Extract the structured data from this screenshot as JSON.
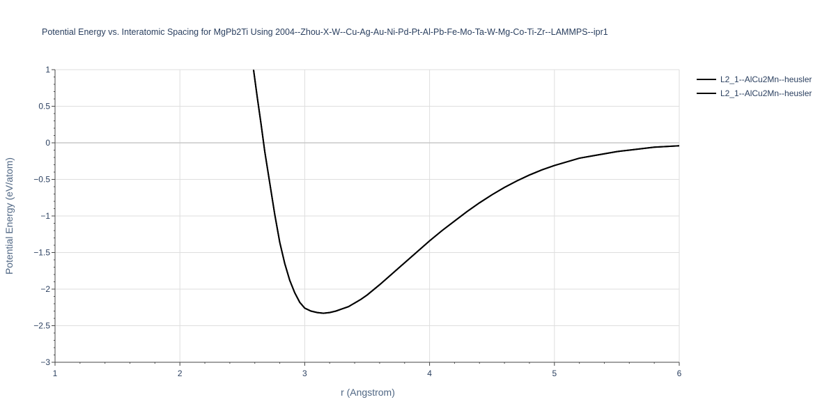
{
  "chart_data": {
    "type": "line",
    "title": "Potential Energy vs. Interatomic Spacing for MgPb2Ti Using 2004--Zhou-X-W--Cu-Ag-Au-Ni-Pd-Pt-Al-Pb-Fe-Mo-Ta-W-Mg-Co-Ti-Zr--LAMMPS--ipr1",
    "xlabel": "r (Angstrom)",
    "ylabel": "Potential Energy (eV/atom)",
    "xlim": [
      1,
      6
    ],
    "ylim": [
      -3,
      1
    ],
    "x_ticks": [
      1,
      2,
      3,
      4,
      5,
      6
    ],
    "x_tick_labels": [
      "1",
      "2",
      "3",
      "4",
      "5",
      "6"
    ],
    "y_ticks": [
      1,
      0.5,
      0,
      -0.5,
      -1,
      -1.5,
      -2,
      -2.5,
      -3
    ],
    "y_tick_labels": [
      "1",
      "0.5",
      "0",
      "−0.5",
      "−1",
      "−1.5",
      "−2",
      "−2.5",
      "−3"
    ],
    "grid": true,
    "legend_position": "top-right",
    "series": [
      {
        "name": "L2_1--AlCu2Mn--heusler",
        "color": "#000000",
        "x": [
          2.59,
          2.62,
          2.65,
          2.68,
          2.72,
          2.76,
          2.8,
          2.84,
          2.88,
          2.92,
          2.96,
          3.0,
          3.05,
          3.1,
          3.15,
          3.2,
          3.25,
          3.3,
          3.35,
          3.4,
          3.45,
          3.5,
          3.6,
          3.7,
          3.8,
          3.9,
          4.0,
          4.1,
          4.2,
          4.3,
          4.4,
          4.5,
          4.6,
          4.7,
          4.8,
          4.9,
          5.0,
          5.1,
          5.2,
          5.3,
          5.4,
          5.5,
          5.6,
          5.7,
          5.8,
          5.9,
          6.0
        ],
        "y": [
          1.0,
          0.62,
          0.26,
          -0.12,
          -0.55,
          -0.98,
          -1.36,
          -1.65,
          -1.88,
          -2.05,
          -2.18,
          -2.26,
          -2.3,
          -2.32,
          -2.33,
          -2.32,
          -2.3,
          -2.27,
          -2.24,
          -2.19,
          -2.14,
          -2.08,
          -1.94,
          -1.79,
          -1.64,
          -1.49,
          -1.34,
          -1.2,
          -1.07,
          -0.94,
          -0.82,
          -0.71,
          -0.61,
          -0.52,
          -0.44,
          -0.37,
          -0.31,
          -0.26,
          -0.21,
          -0.18,
          -0.15,
          -0.12,
          -0.1,
          -0.08,
          -0.06,
          -0.05,
          -0.04
        ]
      },
      {
        "name": "L2_1--AlCu2Mn--heusler",
        "color": "#000000",
        "x": [
          2.59,
          2.62,
          2.65,
          2.68,
          2.72,
          2.76,
          2.8,
          2.84,
          2.88,
          2.92,
          2.96,
          3.0,
          3.05,
          3.1,
          3.15,
          3.2,
          3.25,
          3.3,
          3.35,
          3.4,
          3.45,
          3.5,
          3.6,
          3.7,
          3.8,
          3.9,
          4.0,
          4.1,
          4.2,
          4.3,
          4.4,
          4.5,
          4.6,
          4.7,
          4.8,
          4.9,
          5.0,
          5.1,
          5.2,
          5.3,
          5.4,
          5.5,
          5.6,
          5.7,
          5.8,
          5.9,
          6.0
        ],
        "y": [
          1.0,
          0.62,
          0.26,
          -0.12,
          -0.55,
          -0.98,
          -1.36,
          -1.65,
          -1.88,
          -2.05,
          -2.18,
          -2.26,
          -2.3,
          -2.32,
          -2.33,
          -2.32,
          -2.3,
          -2.27,
          -2.24,
          -2.19,
          -2.14,
          -2.08,
          -1.94,
          -1.79,
          -1.64,
          -1.49,
          -1.34,
          -1.2,
          -1.07,
          -0.94,
          -0.82,
          -0.71,
          -0.61,
          -0.52,
          -0.44,
          -0.37,
          -0.31,
          -0.26,
          -0.21,
          -0.18,
          -0.15,
          -0.12,
          -0.1,
          -0.08,
          -0.06,
          -0.05,
          -0.04
        ]
      }
    ]
  }
}
